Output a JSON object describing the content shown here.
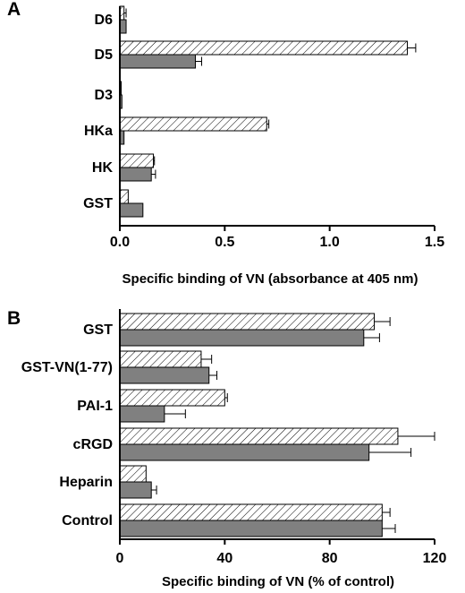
{
  "chart_data": [
    {
      "panel": "A",
      "type": "bar",
      "orientation": "horizontal",
      "categories": [
        "D6",
        "D5",
        "D3",
        "HKa",
        "HK",
        "GST"
      ],
      "series": [
        {
          "pattern": "hatched",
          "values": [
            0.02,
            1.37,
            0.005,
            0.7,
            0.16,
            0.04
          ],
          "errors": [
            0.01,
            0.04,
            0.0,
            0.01,
            0.005,
            0.0
          ]
        },
        {
          "pattern": "solid-gray",
          "values": [
            0.03,
            0.36,
            0.01,
            0.02,
            0.15,
            0.11
          ],
          "errors": [
            0.0,
            0.03,
            0.0,
            0.0,
            0.02,
            0.0
          ]
        }
      ],
      "xlabel": "Specific binding of VN (absorbance at 405 nm)",
      "xlim": [
        0,
        1.5
      ],
      "xticks": [
        "0.0",
        "0.5",
        "1.0",
        "1.5"
      ],
      "xtick_values": [
        0,
        0.5,
        1.0,
        1.5
      ]
    },
    {
      "panel": "B",
      "type": "bar",
      "orientation": "horizontal",
      "categories": [
        "GST",
        "GST-VN(1-77)",
        "PAI-1",
        "cRGD",
        "Heparin",
        "Control"
      ],
      "series": [
        {
          "pattern": "hatched",
          "values": [
            97,
            31,
            40,
            106,
            10,
            100
          ],
          "errors": [
            6,
            4,
            1,
            14,
            0,
            3
          ]
        },
        {
          "pattern": "solid-gray",
          "values": [
            93,
            34,
            17,
            95,
            12,
            100
          ],
          "errors": [
            6,
            3,
            8,
            16,
            2,
            5
          ]
        }
      ],
      "xlabel": "Specific binding of VN (% of control)",
      "xlim": [
        0,
        120
      ],
      "xticks": [
        "0",
        "40",
        "80",
        "120"
      ],
      "xtick_values": [
        0,
        40,
        80,
        120
      ]
    }
  ],
  "colors": {
    "solid_bar": "#808080",
    "hatched_bar_bg": "#ffffff",
    "stroke": "#000000"
  }
}
